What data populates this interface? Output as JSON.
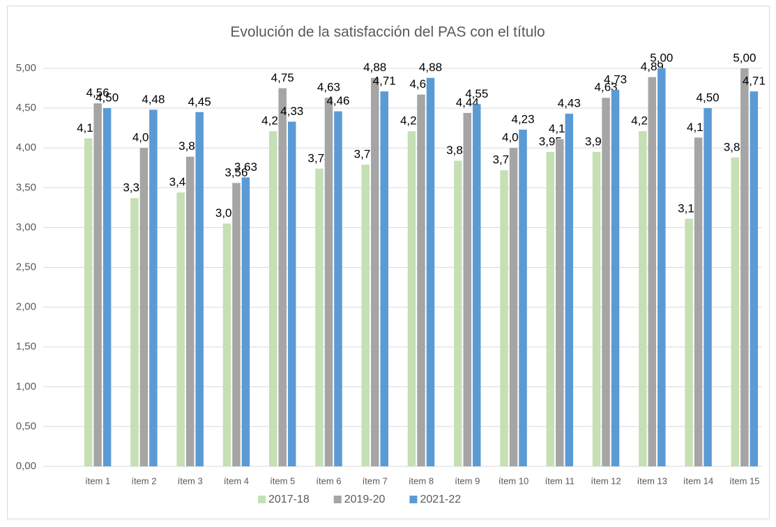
{
  "chart_data": {
    "type": "bar",
    "title": "Evolución de la satisfacción del PAS con el título",
    "categories": [
      "ítem 1",
      "ítem 2",
      "ítem 3",
      "ítem 4",
      "ítem 5",
      "ítem 6",
      "ítem 7",
      "ítem 8",
      "ítem 9",
      "ítem 10",
      "ítem 11",
      "ítem 12",
      "ítem 13",
      "ítem 14",
      "ítem 15"
    ],
    "series": [
      {
        "name": "2017-18",
        "color": "#c5e0b4",
        "values": [
          4.12,
          3.37,
          3.44,
          3.05,
          4.21,
          3.74,
          3.79,
          4.21,
          3.84,
          3.72,
          3.95,
          3.95,
          4.21,
          3.11,
          3.88
        ],
        "value_labels": [
          "4,12",
          "3,37",
          "3,44",
          "3,05",
          "4,21",
          "3,74",
          "3,79",
          "4,21",
          "3,84",
          "3,72",
          "3,95",
          "3,95",
          "4,21",
          "3,11",
          "3,88"
        ]
      },
      {
        "name": "2019-20",
        "color": "#a5a5a5",
        "values": [
          4.56,
          4.0,
          3.89,
          3.56,
          4.75,
          4.63,
          4.88,
          4.67,
          4.44,
          4.0,
          4.11,
          4.63,
          4.89,
          4.13,
          5.0
        ],
        "value_labels": [
          "4,56",
          "4,00",
          "3,89",
          "3,56",
          "4,75",
          "4,63",
          "4,88",
          "4,67",
          "4,44",
          "4,00",
          "4,11",
          "4,63",
          "4,89",
          "4,13",
          "5,00"
        ]
      },
      {
        "name": "2021-22",
        "color": "#5b9bd5",
        "values": [
          4.5,
          4.48,
          4.45,
          3.63,
          4.33,
          4.46,
          4.71,
          4.88,
          4.55,
          4.23,
          4.43,
          4.73,
          5.0,
          4.5,
          4.71
        ],
        "value_labels": [
          "4,50",
          "4,48",
          "4,45",
          "3,63",
          "4,33",
          "4,46",
          "4,71",
          "4,88",
          "4,55",
          "4,23",
          "4,43",
          "4,73",
          "5,00",
          "4,50",
          "4,71"
        ]
      }
    ],
    "ylim": [
      0,
      5
    ],
    "yticks": [
      {
        "value": 0,
        "label": "0,00"
      },
      {
        "value": 0.5,
        "label": "0,50"
      },
      {
        "value": 1,
        "label": "1,00"
      },
      {
        "value": 1.5,
        "label": "1,50"
      },
      {
        "value": 2,
        "label": "2,00"
      },
      {
        "value": 2.5,
        "label": "2,50"
      },
      {
        "value": 3,
        "label": "3,00"
      },
      {
        "value": 3.5,
        "label": "3,50"
      },
      {
        "value": 4,
        "label": "4,00"
      },
      {
        "value": 4.5,
        "label": "4,50"
      },
      {
        "value": 5,
        "label": "5,00"
      }
    ],
    "grid": true,
    "legend": "bottom"
  }
}
